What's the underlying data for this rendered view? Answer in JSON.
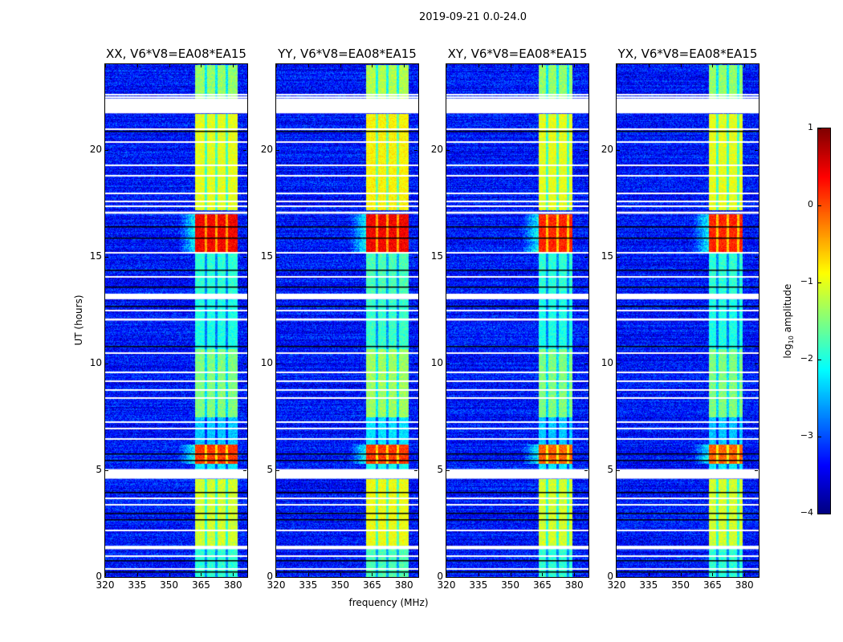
{
  "suptitle": "2019-09-21 0.0-24.0",
  "chart_data": {
    "type": "heatmap",
    "title": "2019-09-21 0.0-24.0",
    "xlabel": "frequency (MHz)",
    "ylabel": "UT (hours)",
    "xlim": [
      320,
      386.7
    ],
    "ylim": [
      0,
      24
    ],
    "xticks": [
      320,
      335,
      350,
      365,
      380
    ],
    "yticks": [
      0,
      5,
      10,
      15,
      20
    ],
    "panels": [
      {
        "title": "XX, V6*V8=EA08*EA15"
      },
      {
        "title": "YY, V6*V8=EA08*EA15"
      },
      {
        "title": "XY, V6*V8=EA08*EA15"
      },
      {
        "title": "YX, V6*V8=EA08*EA15"
      }
    ],
    "colorbar": {
      "label_main": "log",
      "label_sub": "10",
      "label_tail": " amplitude",
      "range": [
        -4,
        1
      ],
      "ticks": [
        1,
        0,
        -1,
        -2,
        -3,
        -4
      ],
      "colormap": "jet"
    },
    "background_level": -3.3,
    "band_mhz": [
      362,
      382
    ],
    "band_gaps_mhz": [
      367,
      372,
      377
    ],
    "time_blocks": [
      {
        "from": 0,
        "to": 1.5,
        "band_level": -1.9
      },
      {
        "from": 1.5,
        "to": 4.6,
        "band_level": -1.1
      },
      {
        "from": 5.05,
        "to": 5.3,
        "band_level": -2.2
      },
      {
        "from": 5.3,
        "to": 6.2,
        "band_level": 0.1
      },
      {
        "from": 6.2,
        "to": 7.5,
        "band_level": -2.4
      },
      {
        "from": 7.5,
        "to": 10.7,
        "band_level": -1.5
      },
      {
        "from": 10.7,
        "to": 13.0,
        "band_level": -2.0
      },
      {
        "from": 13.26,
        "to": 15.2,
        "band_level": -1.9
      },
      {
        "from": 15.2,
        "to": 17.0,
        "band_level": 0.4
      },
      {
        "from": 17.2,
        "to": 21.7,
        "band_level": -1.0
      },
      {
        "from": 22.4,
        "to": 24,
        "band_level": -1.4
      }
    ],
    "flagged_hours": [
      [
        4.6,
        5.05
      ],
      [
        13.0,
        13.26
      ],
      [
        12.0,
        12.1
      ],
      [
        21.7,
        22.4
      ],
      [
        1.3,
        1.46
      ],
      [
        17.0,
        17.1
      ]
    ],
    "thin_white_hours": [
      0.4,
      1.0,
      2.2,
      3.4,
      3.7,
      6.5,
      7.0,
      7.3,
      8.4,
      8.8,
      9.2,
      9.6,
      10.5,
      12.5,
      14.1,
      15.2,
      17.4,
      17.6,
      18.0,
      18.8,
      19.3,
      20.4,
      21.0,
      22.5,
      22.6
    ],
    "dark_hours": [
      0.25,
      0.8,
      2.7,
      3.0,
      4.0,
      5.5,
      5.8,
      10.8,
      12.7,
      13.6,
      14.4,
      15.9,
      16.4,
      20.9
    ]
  }
}
